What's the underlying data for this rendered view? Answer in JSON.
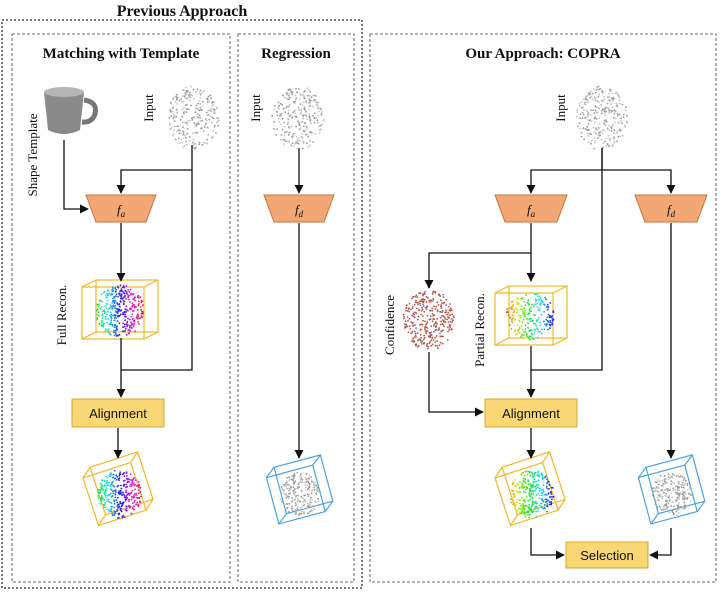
{
  "sections": {
    "previous_title": "Previous Approach",
    "matching_title": "Matching with Template",
    "regression_title": "Regression",
    "ours_title": "Our Approach: COPRA"
  },
  "labels": {
    "shape_template": "Shape Template",
    "input": "Input",
    "full_recon": "Full Recon.",
    "confidence": "Confidence",
    "partial_recon": "Partial Recon."
  },
  "blocks": {
    "fa_symbol": "f",
    "fa_sub": "a",
    "fd_symbol": "f",
    "fd_sub": "d",
    "alignment": "Alignment",
    "selection": "Selection"
  },
  "colors": {
    "trapezoid_fill": "#f2a774",
    "trapezoid_stroke": "#c9733b",
    "block_fill": "#f8d774",
    "block_stroke": "#d8a92a",
    "frame_stroke": "#8a8a8a",
    "arrow": "#111111",
    "bbox_yellow": "#f2b824",
    "bbox_blue": "#4aa3e0"
  }
}
